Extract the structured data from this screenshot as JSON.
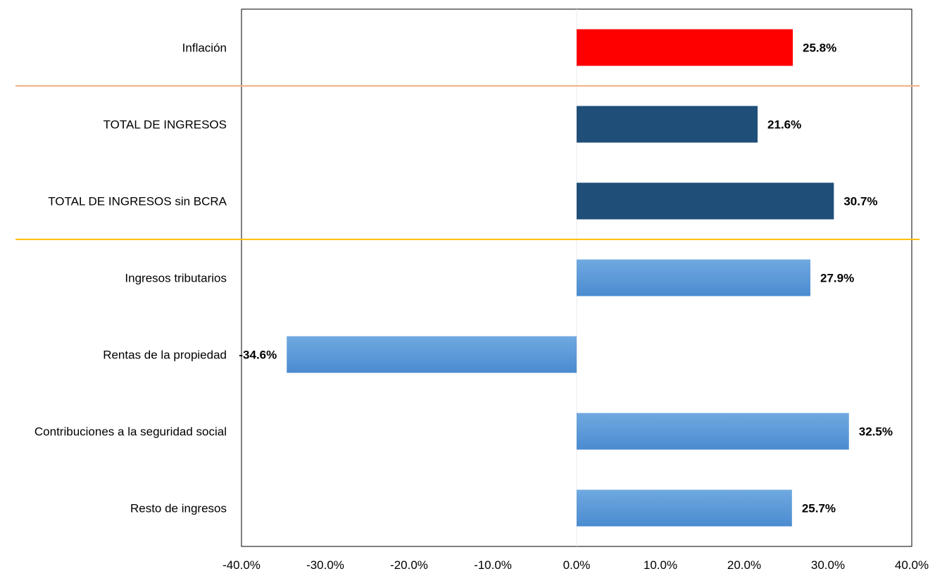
{
  "chart_data": {
    "type": "bar",
    "orientation": "horizontal",
    "categories": [
      "Inflación",
      "TOTAL DE INGRESOS",
      "TOTAL DE INGRESOS sin BCRA",
      "Ingresos tributarios",
      "Rentas de la propiedad",
      "Contribuciones a la seguridad social",
      "Resto de ingresos"
    ],
    "values": [
      25.8,
      21.6,
      30.7,
      27.9,
      -34.6,
      32.5,
      25.7
    ],
    "value_labels": [
      "25.8%",
      "21.6%",
      "30.7%",
      "27.9%",
      "-34.6%",
      "32.5%",
      "25.7%"
    ],
    "bar_colors": [
      "#ff0000",
      "#1f4e79",
      "#1f4e79",
      "#5b9bd5",
      "#5b9bd5",
      "#5b9bd5",
      "#5b9bd5"
    ],
    "xlim": [
      -40,
      40
    ],
    "xticks": [
      -40,
      -30,
      -20,
      -10,
      0,
      10,
      20,
      30,
      40
    ],
    "xtick_labels": [
      "-40.0%",
      "-30.0%",
      "-20.0%",
      "-10.0%",
      "0.0%",
      "10.0%",
      "20.0%",
      "30.0%",
      "40.0%"
    ],
    "separators": [
      {
        "after_index": 0,
        "color": "#f4b183"
      },
      {
        "after_index": 2,
        "color": "#ffc000"
      }
    ],
    "title": "",
    "xlabel": "",
    "ylabel": "",
    "legend": "none",
    "grid": false
  }
}
